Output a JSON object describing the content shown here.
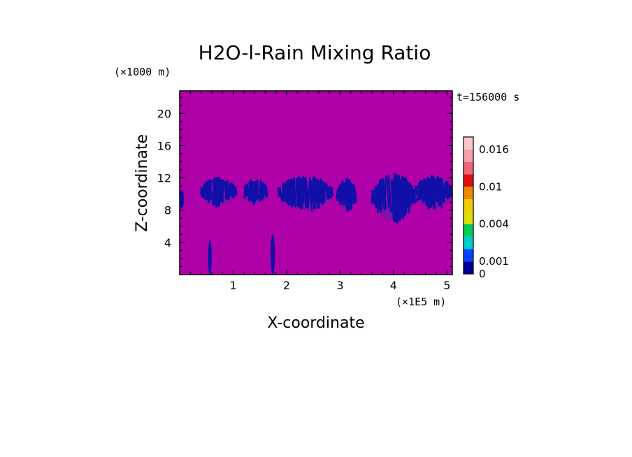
{
  "chart_data": {
    "type": "heatmap",
    "title": "H2O-l-Rain Mixing Ratio",
    "xlabel": "X-coordinate",
    "ylabel": "Z-coordinate",
    "x_unit": "(×1E5 m)",
    "y_unit": "(×1000 m)",
    "time_label": "t=156000 s",
    "xlim": [
      0,
      5.1
    ],
    "ylim": [
      0,
      22.8
    ],
    "x_ticks": [
      1,
      2,
      3,
      4,
      5
    ],
    "y_ticks": [
      4,
      8,
      12,
      16,
      20
    ],
    "background_value": 0,
    "colorbar": {
      "levels": [
        0,
        0.001,
        0.002,
        0.003,
        0.004,
        0.006,
        0.008,
        0.01,
        0.012,
        0.014,
        0.016
      ],
      "colors": [
        "#000099",
        "#0044ff",
        "#00cccc",
        "#00cc55",
        "#dddd00",
        "#eecc00",
        "#ee8800",
        "#dd1111",
        "#ee6677",
        "#f4a0a8",
        "#f8c8cc"
      ],
      "labels": [
        {
          "value": 0,
          "text": "0"
        },
        {
          "value": 0.001,
          "text": "0.001"
        },
        {
          "value": 0.004,
          "text": "0.004"
        },
        {
          "value": 0.01,
          "text": "0.01"
        },
        {
          "value": 0.016,
          "text": "0.016"
        }
      ]
    },
    "field_colors": {
      "background": "#b000a8",
      "low": "#1010a8",
      "very_low": "#5a1fa8"
    },
    "rain_regions": [
      {
        "x_min": 0.0,
        "x_max": 0.08,
        "z_min": 8.2,
        "z_max": 10.5,
        "value": 0.0005
      },
      {
        "x_min": 0.4,
        "x_max": 1.05,
        "z_min": 8.4,
        "z_max": 12.0,
        "value": 0.0005
      },
      {
        "x_min": 1.2,
        "x_max": 1.65,
        "z_min": 8.6,
        "z_max": 11.8,
        "value": 0.0005
      },
      {
        "x_min": 1.85,
        "x_max": 2.85,
        "z_min": 7.8,
        "z_max": 12.2,
        "value": 0.0005
      },
      {
        "x_min": 2.95,
        "x_max": 3.3,
        "z_min": 7.8,
        "z_max": 11.8,
        "value": 0.0005
      },
      {
        "x_min": 3.6,
        "x_max": 4.4,
        "z_min": 6.4,
        "z_max": 12.5,
        "value": 0.0005
      },
      {
        "x_min": 4.4,
        "x_max": 5.1,
        "z_min": 8.0,
        "z_max": 12.2,
        "value": 0.0005
      },
      {
        "x_min": 0.53,
        "x_max": 0.6,
        "z_min": 0.0,
        "z_max": 4.3,
        "value": 0.0005
      },
      {
        "x_min": 1.7,
        "x_max": 1.78,
        "z_min": 0.0,
        "z_max": 5.0,
        "value": 0.0005
      }
    ]
  }
}
